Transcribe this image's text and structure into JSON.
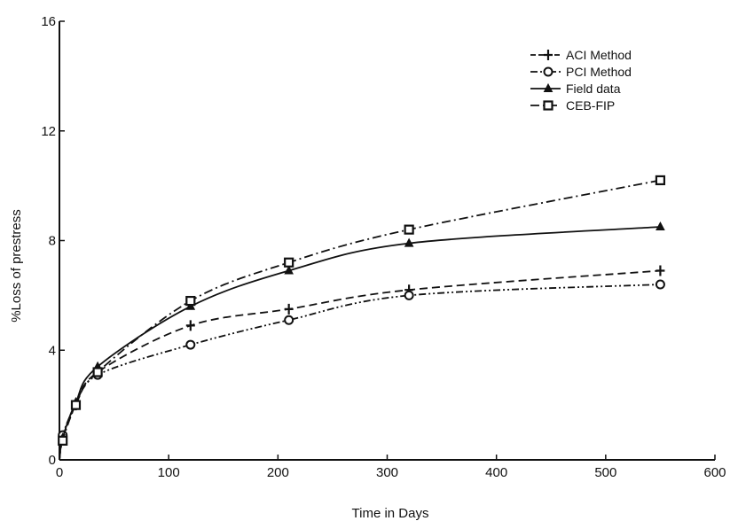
{
  "chart_data": {
    "type": "line",
    "xlabel": "Time in Days",
    "ylabel": "%Loss of prestress",
    "xlim": [
      0,
      600
    ],
    "ylim": [
      0,
      16
    ],
    "xticks": [
      0,
      100,
      200,
      300,
      400,
      500,
      600
    ],
    "yticks": [
      0,
      4,
      8,
      12,
      16
    ],
    "grid": false,
    "legend_position": "top-right",
    "series": [
      {
        "name": "ACI Method",
        "marker": "plus",
        "dash": "dash",
        "x": [
          0,
          3,
          15,
          35,
          120,
          210,
          320,
          550
        ],
        "y": [
          0,
          0.8,
          2.0,
          3.2,
          4.9,
          5.5,
          6.2,
          6.9
        ]
      },
      {
        "name": "PCI Method",
        "marker": "circle",
        "dash": "dash-dot-dot",
        "x": [
          0,
          3,
          15,
          35,
          120,
          210,
          320,
          550
        ],
        "y": [
          0,
          0.9,
          2.0,
          3.1,
          4.2,
          5.1,
          6.0,
          6.4
        ]
      },
      {
        "name": "Field data",
        "marker": "triangle",
        "dash": "solid",
        "x": [
          0,
          3,
          15,
          35,
          120,
          210,
          320,
          550
        ],
        "y": [
          0,
          0.8,
          2.1,
          3.4,
          5.6,
          6.9,
          7.9,
          8.5
        ]
      },
      {
        "name": "CEB-FIP",
        "marker": "square",
        "dash": "dash-dot",
        "x": [
          0,
          3,
          15,
          35,
          120,
          210,
          320,
          550
        ],
        "y": [
          0,
          0.7,
          2.0,
          3.2,
          5.8,
          7.2,
          8.4,
          10.2
        ]
      }
    ]
  }
}
